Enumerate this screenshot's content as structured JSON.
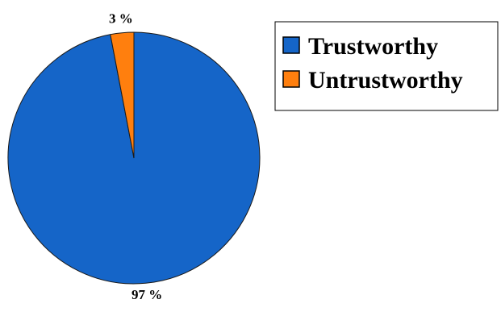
{
  "chart_data": {
    "type": "pie",
    "labels": [
      "Trustworthy",
      "Untrustworthy"
    ],
    "values": [
      97,
      3
    ],
    "value_labels": [
      "97 %",
      "3 %"
    ],
    "colors": [
      "#1565c8",
      "#ff7f0e"
    ],
    "title": "",
    "legend_position": "top-right"
  }
}
